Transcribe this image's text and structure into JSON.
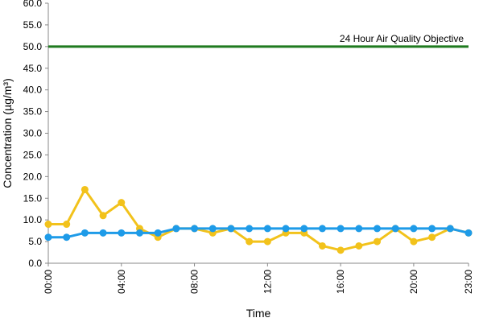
{
  "chart_data": {
    "type": "line",
    "xlabel": "Time",
    "ylabel": "Concentration (µg/m³)",
    "ylim": [
      0,
      60
    ],
    "y_ticks": [
      "0.0",
      "5.0",
      "10.0",
      "15.0",
      "20.0",
      "25.0",
      "30.0",
      "35.0",
      "40.0",
      "45.0",
      "50.0",
      "55.0",
      "60.0"
    ],
    "x_hours": [
      0,
      1,
      2,
      3,
      4,
      5,
      6,
      7,
      8,
      9,
      10,
      11,
      12,
      13,
      14,
      15,
      16,
      17,
      18,
      19,
      20,
      21,
      22,
      23
    ],
    "x_tick_labels": [
      {
        "hour": 0,
        "label": "00:00"
      },
      {
        "hour": 4,
        "label": "04:00"
      },
      {
        "hour": 8,
        "label": "08:00"
      },
      {
        "hour": 12,
        "label": "12:00"
      },
      {
        "hour": 16,
        "label": "16:00"
      },
      {
        "hour": 20,
        "label": "20:00"
      },
      {
        "hour": 23,
        "label": "23:00"
      }
    ],
    "grid": false,
    "series": [
      {
        "color": "#F2C21B",
        "values": [
          9,
          9,
          17,
          11,
          14,
          8,
          6,
          8,
          8,
          7,
          8,
          5,
          5,
          7,
          7,
          4,
          3,
          4,
          5,
          8,
          5,
          6,
          8,
          7
        ]
      },
      {
        "color": "#1E9BE8",
        "values": [
          6,
          6,
          7,
          7,
          7,
          7,
          7,
          8,
          8,
          8,
          8,
          8,
          8,
          8,
          8,
          8,
          8,
          8,
          8,
          8,
          8,
          8,
          8,
          7
        ]
      }
    ],
    "objective": {
      "value": 50,
      "label": "24 Hour Air Quality Objective",
      "color": "#1F7A1F"
    }
  }
}
